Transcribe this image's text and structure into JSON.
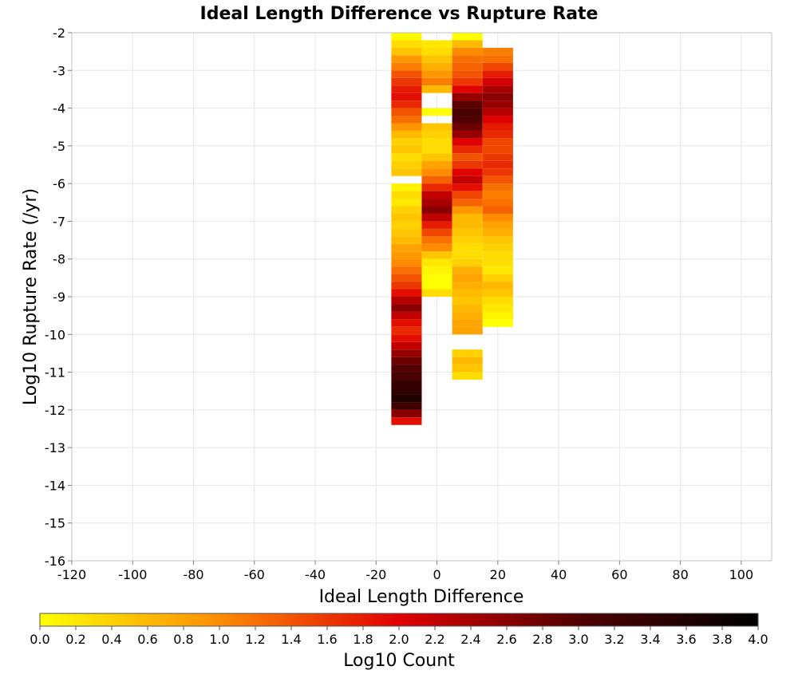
{
  "chart_data": {
    "type": "heatmap",
    "title": "Ideal Length Difference vs Rupture Rate",
    "xlabel": "Ideal Length Difference",
    "ylabel": "Log10 Rupture Rate (/yr)",
    "xlim": [
      -120,
      110
    ],
    "ylim": [
      -16,
      -2
    ],
    "x_ticks": [
      "-120",
      "-100",
      "-80",
      "-60",
      "-40",
      "-20",
      "0",
      "20",
      "40",
      "60",
      "80",
      "100"
    ],
    "y_ticks": [
      "-2",
      "-3",
      "-4",
      "-5",
      "-6",
      "-7",
      "-8",
      "-9",
      "-10",
      "-11",
      "-12",
      "-13",
      "-14",
      "-15",
      "-16"
    ],
    "grid": true,
    "bin_width_x": 10,
    "bin_height_y": 0.2,
    "colorbar": {
      "label": "Log10 Count",
      "range": [
        0,
        4
      ],
      "ticks": [
        "0.0",
        "0.2",
        "0.4",
        "0.6",
        "0.8",
        "1.0",
        "1.2",
        "1.4",
        "1.6",
        "1.8",
        "2.0",
        "2.2",
        "2.4",
        "2.6",
        "2.8",
        "3.0",
        "3.2",
        "3.4",
        "3.6",
        "3.8",
        "4.0"
      ],
      "colors": [
        "#ffff00",
        "#ff8c00",
        "#e00000",
        "#500000",
        "#000000"
      ]
    },
    "cells": [
      [
        -10,
        -2.1,
        0.05
      ],
      [
        -10,
        -2.3,
        0.3
      ],
      [
        -10,
        -2.5,
        0.5
      ],
      [
        -10,
        -2.7,
        0.9
      ],
      [
        -10,
        -2.9,
        1.1
      ],
      [
        -10,
        -3.1,
        1.4
      ],
      [
        -10,
        -3.3,
        1.6
      ],
      [
        -10,
        -3.5,
        1.8
      ],
      [
        -10,
        -3.7,
        1.9
      ],
      [
        -10,
        -3.9,
        1.7
      ],
      [
        -10,
        -4.1,
        1.4
      ],
      [
        -10,
        -4.3,
        1.2
      ],
      [
        -10,
        -4.5,
        0.9
      ],
      [
        -10,
        -4.7,
        0.6
      ],
      [
        -10,
        -4.9,
        0.4
      ],
      [
        -10,
        -5.1,
        0.5
      ],
      [
        -10,
        -5.3,
        0.3
      ],
      [
        -10,
        -5.5,
        0.4
      ],
      [
        -10,
        -5.7,
        0.5
      ],
      [
        -10,
        -6.1,
        0.1
      ],
      [
        -10,
        -6.3,
        0.3
      ],
      [
        -10,
        -6.5,
        0.2
      ],
      [
        -10,
        -6.7,
        0.4
      ],
      [
        -10,
        -6.9,
        0.5
      ],
      [
        -10,
        -7.1,
        0.4
      ],
      [
        -10,
        -7.3,
        0.5
      ],
      [
        -10,
        -7.5,
        0.6
      ],
      [
        -10,
        -7.7,
        0.8
      ],
      [
        -10,
        -7.9,
        0.9
      ],
      [
        -10,
        -8.1,
        1.0
      ],
      [
        -10,
        -8.3,
        1.2
      ],
      [
        -10,
        -8.5,
        1.4
      ],
      [
        -10,
        -8.7,
        1.6
      ],
      [
        -10,
        -8.9,
        1.9
      ],
      [
        -10,
        -9.1,
        2.3
      ],
      [
        -10,
        -9.3,
        2.6
      ],
      [
        -10,
        -9.5,
        2.2
      ],
      [
        -10,
        -9.7,
        1.9
      ],
      [
        -10,
        -9.9,
        1.7
      ],
      [
        -10,
        -10.1,
        1.9
      ],
      [
        -10,
        -10.3,
        2.2
      ],
      [
        -10,
        -10.5,
        2.5
      ],
      [
        -10,
        -10.7,
        2.8
      ],
      [
        -10,
        -10.9,
        3.0
      ],
      [
        -10,
        -11.1,
        3.1
      ],
      [
        -10,
        -11.3,
        3.3
      ],
      [
        -10,
        -11.5,
        3.4
      ],
      [
        -10,
        -11.7,
        3.6
      ],
      [
        -10,
        -11.9,
        3.2
      ],
      [
        -10,
        -12.1,
        2.6
      ],
      [
        -10,
        -12.3,
        1.9
      ],
      [
        0,
        -2.3,
        0.2
      ],
      [
        0,
        -2.5,
        0.3
      ],
      [
        0,
        -2.7,
        0.5
      ],
      [
        0,
        -2.9,
        0.7
      ],
      [
        0,
        -3.1,
        0.9
      ],
      [
        0,
        -3.3,
        1.1
      ],
      [
        0,
        -3.5,
        0.6
      ],
      [
        0,
        -4.1,
        0.0
      ],
      [
        0,
        -4.5,
        0.5
      ],
      [
        0,
        -4.7,
        0.4
      ],
      [
        0,
        -4.9,
        0.3
      ],
      [
        0,
        -5.1,
        0.3
      ],
      [
        0,
        -5.3,
        0.5
      ],
      [
        0,
        -5.5,
        0.8
      ],
      [
        0,
        -5.7,
        1.0
      ],
      [
        0,
        -5.9,
        1.3
      ],
      [
        0,
        -6.1,
        1.7
      ],
      [
        0,
        -6.3,
        2.2
      ],
      [
        0,
        -6.5,
        2.4
      ],
      [
        0,
        -6.7,
        2.6
      ],
      [
        0,
        -6.9,
        2.2
      ],
      [
        0,
        -7.1,
        1.8
      ],
      [
        0,
        -7.3,
        1.5
      ],
      [
        0,
        -7.5,
        1.2
      ],
      [
        0,
        -7.7,
        1.0
      ],
      [
        0,
        -7.9,
        0.5
      ],
      [
        0,
        -8.1,
        0.2
      ],
      [
        0,
        -8.3,
        0.1
      ],
      [
        0,
        -8.5,
        0.0
      ],
      [
        0,
        -8.7,
        0.0
      ],
      [
        0,
        -8.9,
        0.3
      ],
      [
        10,
        -2.1,
        0.0
      ],
      [
        10,
        -2.3,
        0.6
      ],
      [
        10,
        -2.5,
        1.0
      ],
      [
        10,
        -2.7,
        1.2
      ],
      [
        10,
        -2.9,
        1.3
      ],
      [
        10,
        -3.1,
        1.4
      ],
      [
        10,
        -3.3,
        1.6
      ],
      [
        10,
        -3.5,
        2.0
      ],
      [
        10,
        -3.7,
        2.5
      ],
      [
        10,
        -3.9,
        2.9
      ],
      [
        10,
        -4.1,
        3.1
      ],
      [
        10,
        -4.3,
        3.0
      ],
      [
        10,
        -4.5,
        2.8
      ],
      [
        10,
        -4.7,
        2.5
      ],
      [
        10,
        -4.9,
        2.0
      ],
      [
        10,
        -5.1,
        1.7
      ],
      [
        10,
        -5.3,
        1.4
      ],
      [
        10,
        -5.5,
        1.6
      ],
      [
        10,
        -5.7,
        2.0
      ],
      [
        10,
        -5.9,
        2.2
      ],
      [
        10,
        -6.1,
        1.9
      ],
      [
        10,
        -6.3,
        1.5
      ],
      [
        10,
        -6.5,
        1.3
      ],
      [
        10,
        -6.7,
        0.9
      ],
      [
        10,
        -6.9,
        0.6
      ],
      [
        10,
        -7.1,
        0.6
      ],
      [
        10,
        -7.3,
        0.5
      ],
      [
        10,
        -7.5,
        0.4
      ],
      [
        10,
        -7.7,
        0.3
      ],
      [
        10,
        -7.9,
        0.3
      ],
      [
        10,
        -8.1,
        0.4
      ],
      [
        10,
        -8.3,
        0.7
      ],
      [
        10,
        -8.5,
        0.8
      ],
      [
        10,
        -8.7,
        0.7
      ],
      [
        10,
        -8.9,
        0.6
      ],
      [
        10,
        -9.1,
        0.5
      ],
      [
        10,
        -9.3,
        0.6
      ],
      [
        10,
        -9.5,
        0.7
      ],
      [
        10,
        -9.7,
        0.8
      ],
      [
        10,
        -9.9,
        0.8
      ],
      [
        10,
        -10.5,
        0.4
      ],
      [
        10,
        -10.7,
        0.6
      ],
      [
        10,
        -10.9,
        0.5
      ],
      [
        10,
        -11.1,
        0.3
      ],
      [
        20,
        -2.5,
        1.1
      ],
      [
        20,
        -2.7,
        1.2
      ],
      [
        20,
        -2.9,
        1.5
      ],
      [
        20,
        -3.1,
        1.8
      ],
      [
        20,
        -3.3,
        2.1
      ],
      [
        20,
        -3.5,
        2.4
      ],
      [
        20,
        -3.7,
        2.6
      ],
      [
        20,
        -3.9,
        2.5
      ],
      [
        20,
        -4.1,
        2.3
      ],
      [
        20,
        -4.3,
        2.0
      ],
      [
        20,
        -4.5,
        1.8
      ],
      [
        20,
        -4.7,
        1.7
      ],
      [
        20,
        -4.9,
        1.5
      ],
      [
        20,
        -5.1,
        1.5
      ],
      [
        20,
        -5.3,
        1.6
      ],
      [
        20,
        -5.5,
        1.7
      ],
      [
        20,
        -5.7,
        1.6
      ],
      [
        20,
        -5.9,
        1.4
      ],
      [
        20,
        -6.1,
        1.2
      ],
      [
        20,
        -6.3,
        1.1
      ],
      [
        20,
        -6.5,
        1.2
      ],
      [
        20,
        -6.7,
        1.3
      ],
      [
        20,
        -6.9,
        1.0
      ],
      [
        20,
        -7.1,
        0.8
      ],
      [
        20,
        -7.3,
        0.7
      ],
      [
        20,
        -7.5,
        0.5
      ],
      [
        20,
        -7.7,
        0.4
      ],
      [
        20,
        -7.9,
        0.3
      ],
      [
        20,
        -8.1,
        0.3
      ],
      [
        20,
        -8.3,
        0.2
      ],
      [
        20,
        -8.5,
        0.4
      ],
      [
        20,
        -8.7,
        0.6
      ],
      [
        20,
        -8.9,
        0.5
      ],
      [
        20,
        -9.1,
        0.3
      ],
      [
        20,
        -9.3,
        0.2
      ],
      [
        20,
        -9.5,
        0.1
      ],
      [
        20,
        -9.7,
        0.0
      ]
    ]
  }
}
